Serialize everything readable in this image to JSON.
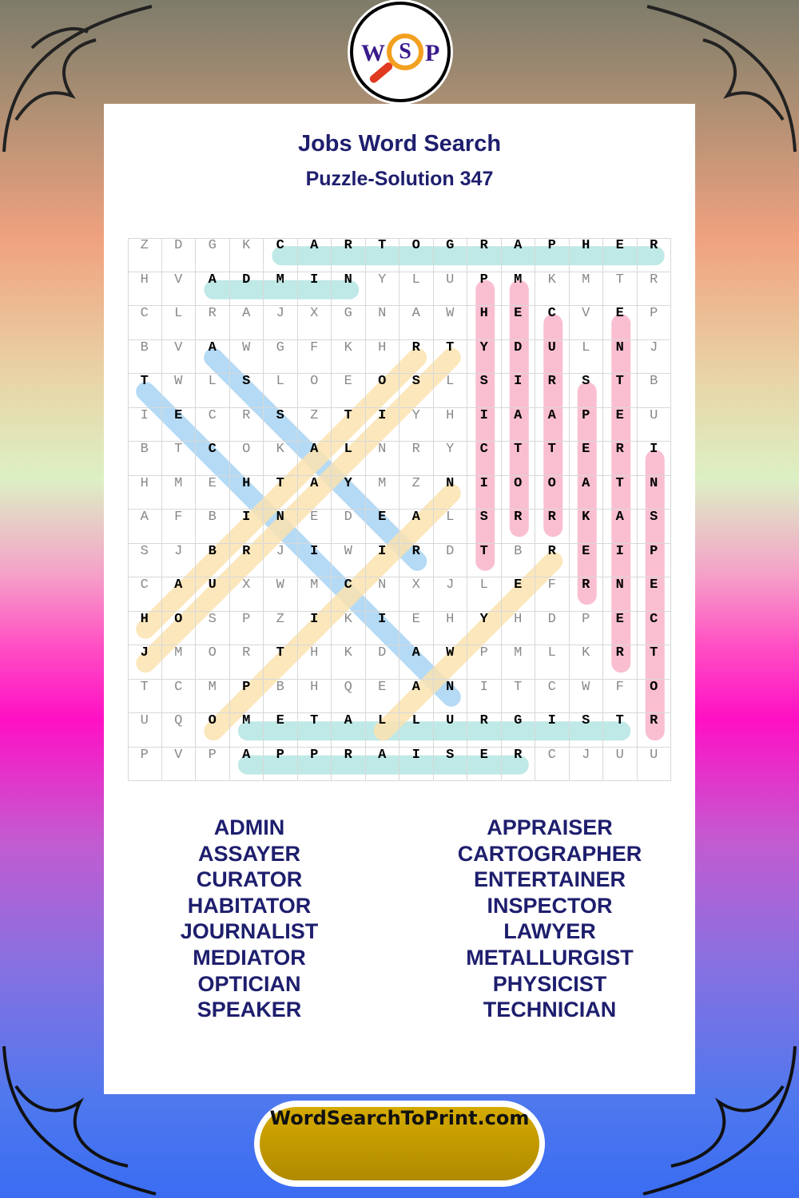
{
  "logo": {
    "letters": [
      "W",
      "S",
      "P"
    ]
  },
  "header": {
    "title": "Jobs Word Search",
    "subtitle": "Puzzle-Solution 347"
  },
  "puzzle": {
    "rows": [
      "ZDGKCARTOGRAPHER",
      "HVADMINYLUPMKMTR",
      "CLRAJXGNAWHECVEP",
      "BVAWGFKHRTYDULNJ",
      "TWLSLOEOSLSIRSTB",
      "IECRSZTIYHIAAPEU",
      "BTCOKALNRYCTTERI",
      "HMEHTAYMZNIOOATN",
      "AFBINEDEALSRRKAS",
      "SJBRJIWIRDTBREIP",
      "CAUXWMCNXJLEFRNE",
      "HOSPZIKIEHYHDPEC",
      "JMORTHKDAWPMLKRT",
      "TCMPBHQEANITCWFO",
      "UQOMETALLURGISTR",
      "PVPAPPRAISERCJUU"
    ],
    "colors": {
      "teal": "#b4e6e2",
      "pink": "#f8b4c8",
      "blue": "#a8d4f4",
      "yellow": "#fbe3b0"
    },
    "solutions": [
      {
        "word": "CARTOGRAPHER",
        "start": [
          0,
          4
        ],
        "end": [
          0,
          15
        ],
        "color": "teal"
      },
      {
        "word": "ADMIN",
        "start": [
          1,
          2
        ],
        "end": [
          1,
          6
        ],
        "color": "teal"
      },
      {
        "word": "METALLURGIST",
        "start": [
          14,
          3
        ],
        "end": [
          14,
          14
        ],
        "color": "teal"
      },
      {
        "word": "APPRAISER",
        "start": [
          15,
          3
        ],
        "end": [
          15,
          11
        ],
        "color": "teal"
      },
      {
        "word": "PHYSICIST",
        "start": [
          1,
          10
        ],
        "end": [
          9,
          10
        ],
        "color": "pink"
      },
      {
        "word": "MEDIATOR",
        "start": [
          1,
          11
        ],
        "end": [
          8,
          11
        ],
        "color": "pink"
      },
      {
        "word": "CURATOR",
        "start": [
          2,
          12
        ],
        "end": [
          8,
          12
        ],
        "color": "pink"
      },
      {
        "word": "SPEAKER",
        "start": [
          4,
          13
        ],
        "end": [
          10,
          13
        ],
        "color": "pink"
      },
      {
        "word": "ENTERTAINER",
        "start": [
          2,
          14
        ],
        "end": [
          12,
          14
        ],
        "color": "pink"
      },
      {
        "word": "INSPECTOR",
        "start": [
          6,
          15
        ],
        "end": [
          14,
          15
        ],
        "color": "pink"
      },
      {
        "word": "ASSAYER",
        "start": [
          3,
          2
        ],
        "end": [
          9,
          8
        ],
        "color": "blue"
      },
      {
        "word": "TECHNICIAN",
        "start": [
          4,
          0
        ],
        "end": [
          13,
          9
        ],
        "color": "blue"
      },
      {
        "word": "JOURNALIST",
        "start": [
          12,
          0
        ],
        "end": [
          3,
          9
        ],
        "color": "yellow"
      },
      {
        "word": "HABITATOR",
        "start": [
          11,
          0
        ],
        "end": [
          3,
          8
        ],
        "color": "yellow"
      },
      {
        "word": "OPTICIAN",
        "start": [
          14,
          2
        ],
        "end": [
          7,
          9
        ],
        "color": "yellow"
      },
      {
        "word": "LAWYER",
        "start": [
          14,
          7
        ],
        "end": [
          9,
          12
        ],
        "color": "yellow"
      }
    ]
  },
  "word_list": {
    "left": [
      "ADMIN",
      "ASSAYER",
      "CURATOR",
      "HABITATOR",
      "JOURNALIST",
      "MEDIATOR",
      "OPTICIAN",
      "SPEAKER"
    ],
    "right": [
      "APPRAISER",
      "CARTOGRAPHER",
      "ENTERTAINER",
      "INSPECTOR",
      "LAWYER",
      "METALLURGIST",
      "PHYSICIST",
      "TECHNICIAN"
    ]
  },
  "footer": {
    "site": "WordSearchToPrint.com"
  }
}
